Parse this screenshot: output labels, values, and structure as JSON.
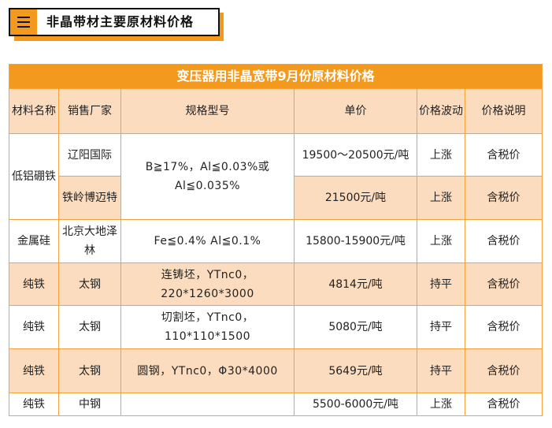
{
  "header": {
    "title": "非晶带材主要原材料价格",
    "menu_icon": "menu-icon"
  },
  "table": {
    "caption": "变压器用非晶宽带9月份原材料价格",
    "columns": [
      "材料名称",
      "销售厂家",
      "规格型号",
      "单价",
      "价格波动",
      "价格说明"
    ],
    "rows": [
      {
        "material": "低铝硼铁",
        "vendor": "辽阳国际",
        "spec": "B≧17%，Al≦0.03%或Al≦0.035%",
        "price": "19500～20500元/吨",
        "trend": "上涨",
        "note": "含税价"
      },
      {
        "vendor": "铁岭博迈特",
        "price": "21500元/吨",
        "trend": "上涨",
        "note": "含税价"
      },
      {
        "material": "金属硅",
        "vendor": "北京大地泽林",
        "spec": "Fe≦0.4% Al≦0.1%",
        "price": "15800-15900元/吨",
        "trend": "上涨",
        "note": "含税价"
      },
      {
        "material": "纯铁",
        "vendor": "太钢",
        "spec": "连铸坯，YTnc0，220*1260*3000",
        "price": "4814元/吨",
        "trend": "持平",
        "note": "含税价"
      },
      {
        "material": "纯铁",
        "vendor": "太钢",
        "spec": "切割坯，YTnc0，110*110*1500",
        "price": "5080元/吨",
        "trend": "持平",
        "note": "含税价"
      },
      {
        "material": "纯铁",
        "vendor": "太钢",
        "spec": "圆钢，YTnc0，Φ30*4000",
        "price": "5649元/吨",
        "trend": "持平",
        "note": "含税价"
      },
      {
        "material": "纯铁",
        "vendor": "中钢",
        "spec": "",
        "price": "5500-6000元/吨",
        "trend": "上涨",
        "note": "含税价"
      }
    ]
  },
  "colors": {
    "accent": "#f39a1e",
    "row_highlight": "#fcdcbf",
    "border": "#f4a23c"
  }
}
